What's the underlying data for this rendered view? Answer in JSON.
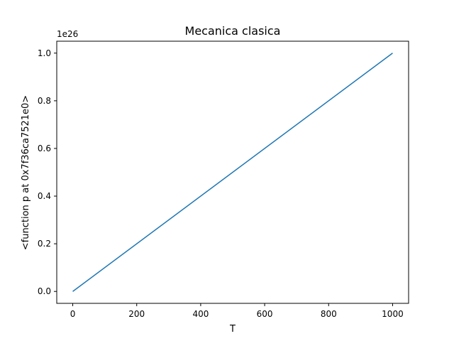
{
  "chart_data": {
    "type": "line",
    "title": "Mecanica clasica",
    "xlabel": "T",
    "ylabel": "<function p at 0x7f36ca7521e0>",
    "offset_label": "1e26",
    "xlim": [
      -50,
      1050
    ],
    "ylim": [
      -0.05,
      1.05
    ],
    "xticks": [
      0,
      200,
      400,
      600,
      800,
      1000
    ],
    "xtick_labels": [
      "0",
      "200",
      "400",
      "600",
      "800",
      "1000"
    ],
    "yticks": [
      0.0,
      0.2,
      0.4,
      0.6,
      0.8,
      1.0
    ],
    "ytick_labels": [
      "0.0",
      "0.2",
      "0.4",
      "0.6",
      "0.8",
      "1.0"
    ],
    "grid": false,
    "series": [
      {
        "x": [
          0,
          1000
        ],
        "y": [
          0.0,
          1.0
        ],
        "color": "#1f77b4"
      }
    ]
  }
}
